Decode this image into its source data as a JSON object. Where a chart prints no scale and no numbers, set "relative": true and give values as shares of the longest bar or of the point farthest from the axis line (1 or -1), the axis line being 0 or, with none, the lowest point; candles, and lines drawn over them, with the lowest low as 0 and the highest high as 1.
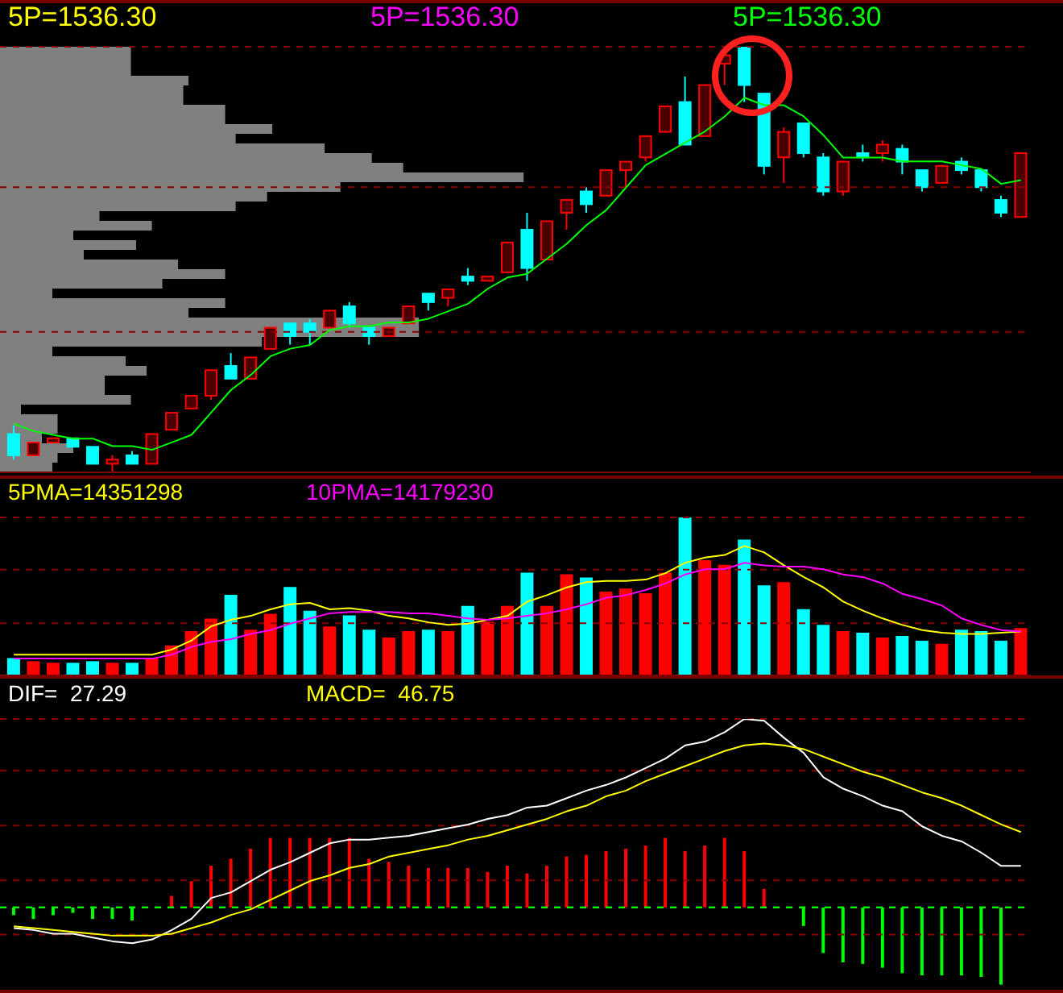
{
  "chart_data": [
    {
      "type": "candlestick",
      "relative": true,
      "ref_lines": [
        {
          "axis": "y",
          "value": 1,
          "color": "#8a0000",
          "line_style": "dashed"
        },
        {
          "axis": "y",
          "value": 0.67,
          "color": "#8a0000",
          "line_style": "dashed"
        },
        {
          "axis": "y",
          "value": 0.33,
          "color": "#8a0000",
          "line_style": "dashed"
        }
      ],
      "categories": [
        null,
        null,
        null,
        null,
        null,
        null,
        null,
        null,
        null,
        null,
        null,
        null,
        null,
        null,
        null,
        null,
        null,
        null,
        null,
        null,
        null,
        null,
        null,
        null,
        null,
        null,
        null,
        null,
        null,
        null,
        null,
        null,
        null,
        null,
        null,
        null,
        null,
        null,
        null,
        null,
        null,
        null,
        null,
        null,
        null,
        null,
        null,
        null,
        null,
        null,
        null,
        null
      ],
      "ohlc": [
        [
          0.09,
          0.11,
          0.03,
          0.04
        ],
        [
          0.04,
          0.07,
          0.04,
          0.07
        ],
        [
          0.07,
          0.08,
          0.07,
          0.08
        ],
        [
          0.08,
          0.08,
          0.06,
          0.06
        ],
        [
          0.06,
          0.06,
          0.02,
          0.02
        ],
        [
          0.02,
          0.04,
          0,
          0.03
        ],
        [
          0.04,
          0.05,
          0.02,
          0.02
        ],
        [
          0.02,
          0.09,
          0.02,
          0.09
        ],
        [
          0.1,
          0.14,
          0.1,
          0.14
        ],
        [
          0.15,
          0.18,
          0.15,
          0.18
        ],
        [
          0.18,
          0.24,
          0.17,
          0.24
        ],
        [
          0.25,
          0.28,
          0.22,
          0.22
        ],
        [
          0.22,
          0.27,
          0.22,
          0.27
        ],
        [
          0.29,
          0.34,
          0.29,
          0.34
        ],
        [
          0.35,
          0.35,
          0.3,
          0.32
        ],
        [
          0.35,
          0.36,
          0.3,
          0.33
        ],
        [
          0.34,
          0.38,
          0.34,
          0.38
        ],
        [
          0.39,
          0.4,
          0.34,
          0.35
        ],
        [
          0.34,
          0.34,
          0.3,
          0.32
        ],
        [
          0.32,
          0.34,
          0.32,
          0.34
        ],
        [
          0.35,
          0.39,
          0.35,
          0.39
        ],
        [
          0.42,
          0.42,
          0.38,
          0.4
        ],
        [
          0.41,
          0.43,
          0.39,
          0.43
        ],
        [
          0.46,
          0.48,
          0.44,
          0.45
        ],
        [
          0.45,
          0.46,
          0.45,
          0.46
        ],
        [
          0.47,
          0.54,
          0.47,
          0.54
        ],
        [
          0.57,
          0.61,
          0.45,
          0.48
        ],
        [
          0.5,
          0.59,
          0.5,
          0.59
        ],
        [
          0.61,
          0.64,
          0.57,
          0.64
        ],
        [
          0.66,
          0.67,
          0.61,
          0.63
        ],
        [
          0.65,
          0.71,
          0.65,
          0.71
        ],
        [
          0.71,
          0.73,
          0.67,
          0.73
        ],
        [
          0.74,
          0.79,
          0.73,
          0.79
        ],
        [
          0.8,
          0.86,
          0.8,
          0.86
        ],
        [
          0.87,
          0.93,
          0.77,
          0.77
        ],
        [
          0.79,
          0.91,
          0.79,
          0.91
        ],
        [
          0.96,
          0.98,
          0.91,
          0.98
        ],
        [
          1,
          1,
          0.87,
          0.91
        ],
        [
          0.89,
          0.89,
          0.7,
          0.72
        ],
        [
          0.74,
          0.81,
          0.68,
          0.8
        ],
        [
          0.82,
          0.82,
          0.74,
          0.75
        ],
        [
          0.74,
          0.75,
          0.65,
          0.66
        ],
        [
          0.66,
          0.73,
          0.65,
          0.73
        ],
        [
          0.75,
          0.77,
          0.73,
          0.74
        ],
        [
          0.75,
          0.78,
          0.73,
          0.77
        ],
        [
          0.76,
          0.77,
          0.7,
          0.73
        ],
        [
          0.71,
          0.71,
          0.66,
          0.67
        ],
        [
          0.68,
          0.72,
          0.68,
          0.72
        ],
        [
          0.73,
          0.74,
          0.7,
          0.71
        ],
        [
          0.71,
          0.71,
          0.66,
          0.67
        ],
        [
          0.64,
          0.65,
          0.6,
          0.61
        ],
        [
          0.6,
          0.75,
          0.6,
          0.75
        ]
      ],
      "colors": [
        "#00ffff",
        "#ff0000",
        "#ff0000",
        "#00ffff",
        "#00ffff",
        "#ff0000",
        "#00ffff",
        "#ff0000",
        "#ff0000",
        "#ff0000",
        "#ff0000",
        "#00ffff",
        "#ff0000",
        "#ff0000",
        "#00ffff",
        "#00ffff",
        "#ff0000",
        "#00ffff",
        "#00ffff",
        "#ff0000",
        "#ff0000",
        "#00ffff",
        "#ff0000",
        "#00ffff",
        "#ff0000",
        "#ff0000",
        "#00ffff",
        "#ff0000",
        "#ff0000",
        "#00ffff",
        "#ff0000",
        "#ff0000",
        "#ff0000",
        "#ff0000",
        "#00ffff",
        "#ff0000",
        "#ff0000",
        "#00ffff",
        "#00ffff",
        "#ff0000",
        "#00ffff",
        "#00ffff",
        "#ff0000",
        "#00ffff",
        "#ff0000",
        "#00ffff",
        "#00ffff",
        "#ff0000",
        "#00ffff",
        "#00ffff",
        "#00ffff",
        "#ff0000"
      ]
    },
    {
      "type": "line",
      "relative": true,
      "ref_lines": [
        {
          "axis": "y",
          "value": 0,
          "color": "#7a0000",
          "line_style": "solid"
        }
      ],
      "categories": [
        null,
        null,
        null,
        null,
        null,
        null,
        null,
        null,
        null,
        null,
        null,
        null,
        null,
        null,
        null,
        null,
        null,
        null,
        null,
        null,
        null,
        null,
        null,
        null,
        null,
        null,
        null,
        null,
        null,
        null,
        null,
        null,
        null,
        null,
        null,
        null,
        null,
        null,
        null,
        null,
        null,
        null,
        null,
        null,
        null,
        null,
        null,
        null,
        null,
        null,
        null,
        null
      ],
      "annotations": [
        "5P=1536.30",
        "5P=1536.30"
      ],
      "series": [
        {
          "name": "5P=1536.30",
          "color": "#00ff00",
          "values": [
            0.13,
            0.11,
            0.1,
            0.09,
            0.09,
            0.07,
            0.07,
            0.06,
            0.08,
            0.1,
            0.16,
            0.22,
            0.26,
            0.31,
            0.33,
            0.34,
            0.38,
            0.39,
            0.39,
            0.4,
            0.4,
            0.41,
            0.43,
            0.45,
            0.49,
            0.52,
            0.53,
            0.57,
            0.61,
            0.66,
            0.7,
            0.76,
            0.82,
            0.85,
            0.88,
            0.91,
            0.95,
            1,
            0.98,
            0.98,
            0.95,
            0.9,
            0.84,
            0.84,
            0.84,
            0.83,
            0.83,
            0.83,
            0.82,
            0.81,
            0.77,
            0.78
          ]
        }
      ]
    },
    {
      "type": "bar",
      "orientation": "horizontal",
      "relative": true,
      "color": "#808080",
      "categories": [
        null,
        null,
        null,
        null,
        null,
        null,
        null,
        null,
        null,
        null,
        null,
        null,
        null,
        null,
        null,
        null,
        null,
        null,
        null,
        null,
        null,
        null,
        null,
        null,
        null,
        null,
        null,
        null,
        null,
        null,
        null,
        null,
        null,
        null,
        null,
        null,
        null,
        null,
        null,
        null,
        null,
        null,
        null,
        null
      ],
      "values": [
        0.25,
        0.25,
        0.25,
        0.36,
        0.35,
        0.35,
        0.43,
        0.43,
        0.52,
        0.45,
        0.62,
        0.71,
        0.77,
        1,
        0.65,
        0.51,
        0.45,
        0.19,
        0.29,
        0.14,
        0.26,
        0.16,
        0.34,
        0.43,
        0.31,
        0.1,
        0.43,
        0.36,
        0.8,
        0.8,
        0.5,
        0.1,
        0.24,
        0.28,
        0.2,
        0.2,
        0.25,
        0.04,
        0.11,
        0.11,
        0.08,
        0.14,
        0.11,
        0.1
      ]
    },
    {
      "type": "bar",
      "relative": true,
      "ref_lines": [
        {
          "axis": "y",
          "value": 1,
          "color": "#8a0000",
          "line_style": "dashed"
        },
        {
          "axis": "y",
          "value": 0.67,
          "color": "#8a0000",
          "line_style": "dashed"
        },
        {
          "axis": "y",
          "value": 0.33,
          "color": "#8a0000",
          "line_style": "dashed"
        },
        {
          "axis": "y",
          "value": 0,
          "color": "#7a0000",
          "line_style": "solid"
        }
      ],
      "categories": [
        null,
        null,
        null,
        null,
        null,
        null,
        null,
        null,
        null,
        null,
        null,
        null,
        null,
        null,
        null,
        null,
        null,
        null,
        null,
        null,
        null,
        null,
        null,
        null,
        null,
        null,
        null,
        null,
        null,
        null,
        null,
        null,
        null,
        null,
        null,
        null,
        null,
        null,
        null,
        null,
        null,
        null,
        null,
        null,
        null,
        null,
        null,
        null,
        null,
        null,
        null,
        null
      ],
      "colors": [
        "#00ffff",
        "#ff0000",
        "#ff0000",
        "#00ffff",
        "#00ffff",
        "#ff0000",
        "#00ffff",
        "#ff0000",
        "#ff0000",
        "#ff0000",
        "#ff0000",
        "#00ffff",
        "#ff0000",
        "#ff0000",
        "#00ffff",
        "#00ffff",
        "#ff0000",
        "#00ffff",
        "#00ffff",
        "#ff0000",
        "#ff0000",
        "#00ffff",
        "#ff0000",
        "#00ffff",
        "#ff0000",
        "#ff0000",
        "#00ffff",
        "#ff0000",
        "#ff0000",
        "#00ffff",
        "#ff0000",
        "#ff0000",
        "#ff0000",
        "#ff0000",
        "#00ffff",
        "#ff0000",
        "#ff0000",
        "#00ffff",
        "#00ffff",
        "#ff0000",
        "#00ffff",
        "#00ffff",
        "#ff0000",
        "#00ffff",
        "#ff0000",
        "#00ffff",
        "#00ffff",
        "#ff0000",
        "#00ffff",
        "#00ffff",
        "#00ffff",
        "#ff0000"
      ],
      "values": [
        0.11,
        0.09,
        0.08,
        0.08,
        0.09,
        0.08,
        0.08,
        0.11,
        0.19,
        0.28,
        0.36,
        0.51,
        0.29,
        0.39,
        0.56,
        0.41,
        0.31,
        0.38,
        0.29,
        0.24,
        0.28,
        0.29,
        0.28,
        0.44,
        0.34,
        0.44,
        0.65,
        0.44,
        0.64,
        0.62,
        0.53,
        0.55,
        0.52,
        0.65,
        1,
        0.73,
        0.7,
        0.86,
        0.57,
        0.59,
        0.42,
        0.32,
        0.28,
        0.27,
        0.24,
        0.25,
        0.22,
        0.2,
        0.29,
        0.28,
        0.22,
        0.3
      ]
    },
    {
      "type": "line",
      "relative": true,
      "ref_lines": [
        {
          "axis": "y",
          "value": 0,
          "color": "#7a0000",
          "line_style": "solid"
        }
      ],
      "categories": [
        null,
        null,
        null,
        null,
        null,
        null,
        null,
        null,
        null,
        null,
        null,
        null,
        null,
        null,
        null,
        null,
        null,
        null,
        null,
        null,
        null,
        null,
        null,
        null,
        null,
        null,
        null,
        null,
        null,
        null,
        null,
        null,
        null,
        null,
        null,
        null,
        null,
        null,
        null,
        null,
        null,
        null,
        null,
        null,
        null,
        null,
        null,
        null,
        null,
        null,
        null,
        null
      ],
      "series": [
        {
          "name": "5PMA=14351298",
          "color": "#ffff00",
          "values": [
            0.16,
            0.16,
            0.16,
            0.16,
            0.16,
            0.16,
            0.16,
            0.16,
            0.2,
            0.27,
            0.38,
            0.43,
            0.46,
            0.51,
            0.55,
            0.56,
            0.51,
            0.52,
            0.5,
            0.46,
            0.44,
            0.41,
            0.39,
            0.4,
            0.43,
            0.46,
            0.57,
            0.62,
            0.68,
            0.72,
            0.73,
            0.73,
            0.74,
            0.79,
            0.87,
            0.91,
            0.93,
            1,
            0.95,
            0.85,
            0.76,
            0.68,
            0.57,
            0.5,
            0.44,
            0.39,
            0.35,
            0.33,
            0.32,
            0.32,
            0.33,
            0.34
          ]
        },
        {
          "name": "10PMA=14179230",
          "color": "#ff00ff",
          "values": [
            0.13,
            0.13,
            0.13,
            0.13,
            0.13,
            0.13,
            0.13,
            0.13,
            0.16,
            0.22,
            0.26,
            0.28,
            0.32,
            0.35,
            0.4,
            0.44,
            0.48,
            0.49,
            0.49,
            0.49,
            0.48,
            0.48,
            0.46,
            0.44,
            0.43,
            0.44,
            0.46,
            0.48,
            0.51,
            0.55,
            0.6,
            0.62,
            0.66,
            0.71,
            0.78,
            0.82,
            0.82,
            0.87,
            0.85,
            0.84,
            0.84,
            0.82,
            0.78,
            0.76,
            0.71,
            0.63,
            0.59,
            0.54,
            0.44,
            0.39,
            0.35,
            0.34
          ]
        }
      ]
    },
    {
      "type": "bar",
      "relative": true,
      "ref_lines": [
        {
          "axis": "y",
          "value": 2.44,
          "color": "#8a0000",
          "line_style": "dashed"
        },
        {
          "axis": "y",
          "value": 1.77,
          "color": "#8a0000",
          "line_style": "dashed"
        },
        {
          "axis": "y",
          "value": 1.06,
          "color": "#8a0000",
          "line_style": "dashed"
        },
        {
          "axis": "y",
          "value": 0.35,
          "color": "#8a0000",
          "line_style": "dashed"
        },
        {
          "axis": "y",
          "value": -0.35,
          "color": "#8a0000",
          "line_style": "dashed"
        },
        {
          "axis": "y",
          "value": 0,
          "color": "#00ff00",
          "line_style": "dashed"
        }
      ],
      "categories": [
        null,
        null,
        null,
        null,
        null,
        null,
        null,
        null,
        null,
        null,
        null,
        null,
        null,
        null,
        null,
        null,
        null,
        null,
        null,
        null,
        null,
        null,
        null,
        null,
        null,
        null,
        null,
        null,
        null,
        null,
        null,
        null,
        null,
        null,
        null,
        null,
        null,
        null,
        null,
        null,
        null,
        null,
        null,
        null,
        null,
        null,
        null,
        null,
        null,
        null,
        null,
        null
      ],
      "colors": [
        "#00ff00",
        "#00ff00",
        "#00ff00",
        "#00ff00",
        "#00ff00",
        "#00ff00",
        "#00ff00",
        "#00ff00",
        "#ff0000",
        "#ff0000",
        "#ff0000",
        "#ff0000",
        "#ff0000",
        "#ff0000",
        "#ff0000",
        "#ff0000",
        "#ff0000",
        "#ff0000",
        "#ff0000",
        "#ff0000",
        "#ff0000",
        "#ff0000",
        "#ff0000",
        "#ff0000",
        "#ff0000",
        "#ff0000",
        "#ff0000",
        "#ff0000",
        "#ff0000",
        "#ff0000",
        "#ff0000",
        "#ff0000",
        "#ff0000",
        "#ff0000",
        "#ff0000",
        "#ff0000",
        "#ff0000",
        "#ff0000",
        "#ff0000",
        "#ff0000",
        "#00ff00",
        "#00ff00",
        "#00ff00",
        "#00ff00",
        "#00ff00",
        "#00ff00",
        "#00ff00",
        "#00ff00",
        "#00ff00",
        "#00ff00",
        "#00ff00",
        "#00ff00"
      ],
      "values": [
        -0.1,
        -0.15,
        -0.1,
        -0.07,
        -0.15,
        -0.15,
        -0.17,
        null,
        0.15,
        0.34,
        0.54,
        0.63,
        0.76,
        0.9,
        0.9,
        0.9,
        0.9,
        0.9,
        0.63,
        0.59,
        0.54,
        0.51,
        0.51,
        0.51,
        0.46,
        0.54,
        0.44,
        0.54,
        0.66,
        0.68,
        0.73,
        0.76,
        0.8,
        0.9,
        0.73,
        0.8,
        0.9,
        0.73,
        0.24,
        0,
        -0.24,
        -0.59,
        -0.71,
        -0.73,
        -0.78,
        -0.85,
        -0.88,
        -0.88,
        -0.88,
        -0.9,
        -1,
        null
      ]
    },
    {
      "type": "line",
      "relative": true,
      "ref_lines": [
        {
          "axis": "y",
          "value": 0,
          "color": "#00ff00",
          "line_style": "dashed"
        }
      ],
      "categories": [
        null,
        null,
        null,
        null,
        null,
        null,
        null,
        null,
        null,
        null,
        null,
        null,
        null,
        null,
        null,
        null,
        null,
        null,
        null,
        null,
        null,
        null,
        null,
        null,
        null,
        null,
        null,
        null,
        null,
        null,
        null,
        null,
        null,
        null,
        null,
        null,
        null,
        null,
        null,
        null,
        null,
        null,
        null,
        null,
        null,
        null,
        null,
        null,
        null,
        null,
        null,
        null
      ],
      "series": [
        {
          "name": "DIF=  27.29",
          "color": "#ffffff",
          "values": [
            -0.11,
            -0.12,
            -0.14,
            -0.14,
            -0.16,
            -0.18,
            -0.19,
            -0.17,
            -0.12,
            -0.06,
            0.05,
            0.08,
            0.14,
            0.2,
            0.24,
            0.29,
            0.34,
            0.36,
            0.36,
            0.37,
            0.38,
            0.4,
            0.42,
            0.44,
            0.47,
            0.49,
            0.53,
            0.54,
            0.58,
            0.62,
            0.65,
            0.69,
            0.74,
            0.79,
            0.86,
            0.88,
            0.93,
            1,
            0.99,
            0.9,
            0.82,
            0.69,
            0.63,
            0.59,
            0.54,
            0.51,
            0.43,
            0.38,
            0.35,
            0.29,
            0.22,
            0.22
          ]
        },
        {
          "name": "MACD=  46.75",
          "color": "#ffff00",
          "values": [
            -0.1,
            -0.11,
            -0.12,
            -0.13,
            -0.14,
            -0.15,
            -0.15,
            -0.15,
            -0.14,
            -0.11,
            -0.08,
            -0.04,
            -0.01,
            0.04,
            0.09,
            0.14,
            0.17,
            0.21,
            0.23,
            0.27,
            0.29,
            0.31,
            0.33,
            0.36,
            0.38,
            0.41,
            0.44,
            0.47,
            0.51,
            0.54,
            0.59,
            0.62,
            0.67,
            0.71,
            0.75,
            0.79,
            0.83,
            0.86,
            0.87,
            0.86,
            0.84,
            0.8,
            0.76,
            0.72,
            0.69,
            0.65,
            0.61,
            0.58,
            0.54,
            0.49,
            0.44,
            0.4
          ]
        }
      ]
    }
  ]
}
